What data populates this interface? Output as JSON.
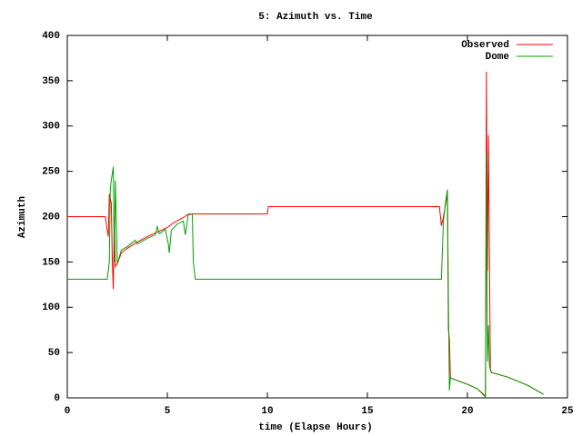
{
  "chart_data": {
    "type": "line",
    "title": "5: Azimuth vs. Time",
    "x_label": "time (Elapse Hours)",
    "y_label": "Azimuth",
    "xlim": [
      0,
      25
    ],
    "xticks": [
      0,
      5,
      10,
      15,
      20,
      25
    ],
    "ylim": [
      0,
      400
    ],
    "yticks": [
      0,
      50,
      100,
      150,
      200,
      250,
      300,
      350,
      400
    ],
    "grid": false,
    "legend": "top-right",
    "series": [
      {
        "name": "Observed",
        "color": "#ff0000",
        "x": [
          0,
          1.9,
          2.0,
          2.05,
          2.1,
          2.2,
          2.25,
          2.3,
          2.35,
          2.4,
          2.5,
          2.7,
          3,
          3.5,
          4,
          4.5,
          5,
          5.3,
          5.8,
          6,
          6.3,
          10,
          10.05,
          18.6,
          18.7,
          18.8,
          19,
          19.05,
          19.1,
          19.15,
          20,
          20.5,
          20.9,
          20.95,
          21.0,
          21.05,
          21.1,
          21.15,
          21.2,
          22,
          23,
          23.8
        ],
        "values": [
          200,
          200,
          185,
          178,
          225,
          215,
          150,
          120,
          200,
          145,
          148,
          160,
          165,
          172,
          178,
          183,
          188,
          193,
          199,
          202,
          203,
          203,
          211,
          211,
          190,
          200,
          225,
          75,
          65,
          22,
          15,
          10,
          2,
          360,
          140,
          290,
          150,
          30,
          28,
          23,
          14,
          4
        ]
      },
      {
        "name": "Dome",
        "color": "#00a000",
        "x": [
          0,
          2.0,
          2.1,
          2.15,
          2.2,
          2.3,
          2.35,
          2.4,
          2.5,
          2.7,
          3,
          3.4,
          3.5,
          4,
          4.4,
          4.5,
          4.6,
          4.9,
          5.05,
          5.1,
          5.2,
          5.5,
          5.8,
          5.9,
          6.05,
          6.25,
          6.3,
          6.4,
          18.7,
          18.8,
          18.9,
          19.0,
          19.05,
          19.1,
          19.15,
          20,
          20.5,
          20.9,
          20.95,
          21.0,
          21.05,
          21.1,
          21.2,
          22,
          23,
          23.8
        ],
        "values": [
          131,
          131,
          150,
          230,
          240,
          255,
          150,
          240,
          148,
          163,
          167,
          174,
          170,
          176,
          180,
          189,
          181,
          186,
          170,
          160,
          185,
          192,
          195,
          180,
          203,
          203,
          150,
          131,
          131,
          195,
          215,
          230,
          110,
          8,
          22,
          15,
          10,
          1,
          270,
          40,
          80,
          35,
          28,
          23,
          14,
          4
        ]
      }
    ]
  }
}
